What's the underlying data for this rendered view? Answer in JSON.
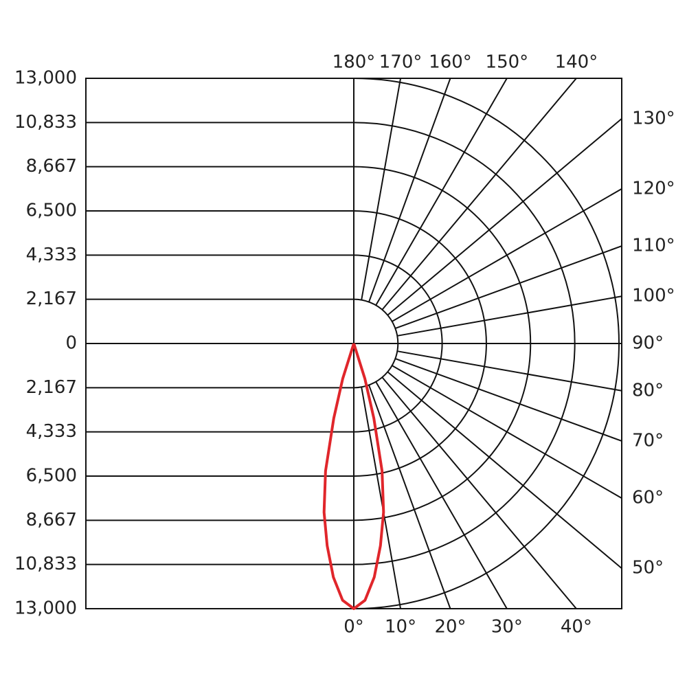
{
  "chart_data": {
    "type": "polar",
    "ylim": [
      -13000,
      13000
    ],
    "yticks": [
      {
        "value": -13000,
        "label": "13,000"
      },
      {
        "value": -10833,
        "label": "10,833"
      },
      {
        "value": -8667,
        "label": "8,667"
      },
      {
        "value": -6500,
        "label": "6,500"
      },
      {
        "value": -4333,
        "label": "4,333"
      },
      {
        "value": -2167,
        "label": "2,167"
      },
      0,
      {
        "value": 2167,
        "label": "2,167"
      },
      {
        "value": 4333,
        "label": "4,333"
      },
      {
        "value": 6500,
        "label": "6,500"
      },
      {
        "value": 8667,
        "label": "8,667"
      },
      {
        "value": 10833,
        "label": "10,833"
      },
      {
        "value": 13000,
        "label": "13,000"
      }
    ],
    "angle_ticks": [
      {
        "value": 0,
        "label": "0°"
      },
      {
        "value": 10,
        "label": "10°"
      },
      {
        "value": 20,
        "label": "20°"
      },
      {
        "value": 30,
        "label": "30°"
      },
      {
        "value": 40,
        "label": "40°"
      },
      {
        "value": 50,
        "label": "50°"
      },
      {
        "value": 60,
        "label": "60°"
      },
      {
        "value": 70,
        "label": "70°"
      },
      {
        "value": 80,
        "label": "80°"
      },
      {
        "value": 90,
        "label": "90°"
      },
      {
        "value": 100,
        "label": "100°"
      },
      {
        "value": 110,
        "label": "110°"
      },
      {
        "value": 120,
        "label": "120°"
      },
      {
        "value": 130,
        "label": "130°"
      },
      {
        "value": 140,
        "label": "140°"
      },
      {
        "value": 150,
        "label": "150°"
      },
      {
        "value": 160,
        "label": "160°"
      },
      {
        "value": 170,
        "label": "170°"
      },
      {
        "value": 180,
        "label": "180°"
      }
    ],
    "series": [
      {
        "color": "#e0262b",
        "x": [
          -20,
          -17.5,
          -15,
          -12.5,
          -10,
          -7.5,
          -5,
          -2.5,
          0,
          2.5,
          5,
          7.5,
          10,
          12.5,
          15,
          17.5,
          20
        ],
        "values": [
          0,
          1800,
          3800,
          6400,
          8400,
          10000,
          11500,
          12600,
          13000,
          12600,
          11500,
          10000,
          8400,
          6400,
          3800,
          1800,
          0
        ]
      }
    ]
  }
}
